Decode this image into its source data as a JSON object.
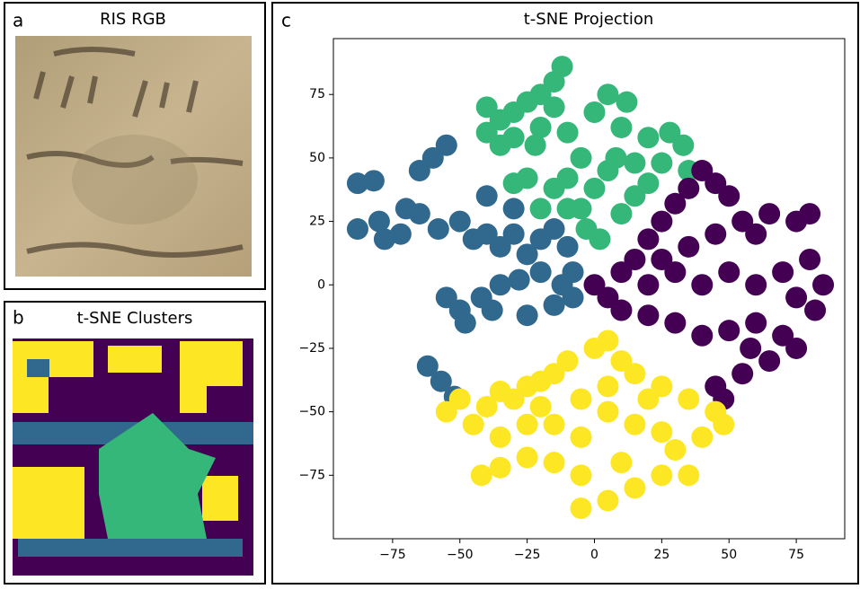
{
  "panels": [
    {
      "letter": "a",
      "title": "RIS RGB"
    },
    {
      "letter": "b",
      "title": "t-SNE Clusters"
    }
  ],
  "chart_data": {
    "type": "scatter",
    "letter": "c",
    "title": "t-SNE Projection",
    "xlim": [
      -97,
      93
    ],
    "ylim": [
      -100,
      97
    ],
    "xticks": [
      {
        "value": -75,
        "label": "−75"
      },
      {
        "value": -50,
        "label": "−50"
      },
      {
        "value": -25,
        "label": "−25"
      },
      0,
      25,
      50,
      75
    ],
    "yticks": [
      {
        "value": -75,
        "label": "−75"
      },
      {
        "value": -50,
        "label": "−50"
      },
      {
        "value": -25,
        "label": "−25"
      },
      0,
      25,
      50,
      75
    ],
    "series": [
      {
        "color": "#35b779",
        "x": [
          -30,
          -25,
          -20,
          -15,
          -12,
          -20,
          -35,
          -40,
          -30,
          -22,
          -10,
          0,
          5,
          12,
          10,
          20,
          28,
          33,
          25,
          35,
          20,
          15,
          5,
          -5,
          -10,
          0,
          -5,
          -3,
          2,
          10,
          -15,
          -25,
          -30,
          -20,
          -10,
          8,
          -35,
          -40,
          15,
          -15
        ],
        "y": [
          68,
          72,
          75,
          80,
          86,
          62,
          65,
          70,
          58,
          55,
          60,
          68,
          75,
          72,
          62,
          58,
          60,
          55,
          48,
          45,
          40,
          35,
          45,
          50,
          42,
          38,
          30,
          22,
          18,
          28,
          38,
          42,
          40,
          30,
          30,
          50,
          55,
          60,
          48,
          70
        ]
      },
      {
        "color": "#31688e",
        "x": [
          -88,
          -82,
          -88,
          -80,
          -72,
          -65,
          -58,
          -50,
          -45,
          -40,
          -35,
          -30,
          -25,
          -20,
          -15,
          -10,
          -8,
          -12,
          -20,
          -28,
          -35,
          -42,
          -50,
          -55,
          -48,
          -38,
          -25,
          -15,
          -8,
          -62,
          -57,
          -52,
          -60,
          -55,
          -65,
          -70,
          -78,
          -30,
          -40
        ],
        "y": [
          40,
          41,
          22,
          25,
          20,
          28,
          22,
          25,
          18,
          20,
          15,
          20,
          12,
          18,
          22,
          15,
          5,
          0,
          5,
          2,
          0,
          -5,
          -10,
          -5,
          -15,
          -10,
          -12,
          -8,
          -5,
          -32,
          -38,
          -44,
          50,
          55,
          45,
          30,
          18,
          30,
          35
        ]
      },
      {
        "color": "#440154",
        "x": [
          0,
          5,
          10,
          15,
          20,
          25,
          30,
          35,
          40,
          45,
          50,
          55,
          60,
          65,
          75,
          80,
          80,
          85,
          82,
          75,
          70,
          60,
          50,
          40,
          30,
          20,
          10,
          20,
          30,
          40,
          50,
          60,
          70,
          75,
          65,
          55,
          45,
          48,
          58,
          35,
          45,
          25
        ],
        "y": [
          0,
          -5,
          5,
          10,
          18,
          25,
          32,
          38,
          45,
          40,
          35,
          25,
          20,
          28,
          25,
          28,
          10,
          0,
          -10,
          -5,
          5,
          0,
          5,
          0,
          5,
          0,
          -10,
          -12,
          -15,
          -20,
          -18,
          -15,
          -20,
          -25,
          -30,
          -35,
          -40,
          -45,
          -25,
          15,
          20,
          10
        ]
      },
      {
        "color": "#fde725",
        "x": [
          -55,
          -50,
          -45,
          -40,
          -35,
          -30,
          -25,
          -20,
          -15,
          -10,
          0,
          5,
          10,
          15,
          25,
          35,
          45,
          48,
          40,
          30,
          25,
          15,
          5,
          -5,
          -5,
          -15,
          -25,
          -35,
          -42,
          -35,
          -25,
          -15,
          -5,
          5,
          15,
          25,
          -5,
          5,
          -20,
          10,
          35,
          20
        ],
        "y": [
          -50,
          -45,
          -55,
          -48,
          -42,
          -45,
          -40,
          -38,
          -35,
          -30,
          -25,
          -22,
          -30,
          -35,
          -40,
          -45,
          -50,
          -55,
          -60,
          -65,
          -75,
          -80,
          -85,
          -88,
          -75,
          -70,
          -68,
          -72,
          -75,
          -60,
          -55,
          -55,
          -60,
          -50,
          -55,
          -58,
          -45,
          -40,
          -48,
          -70,
          -75,
          -45
        ]
      }
    ]
  }
}
